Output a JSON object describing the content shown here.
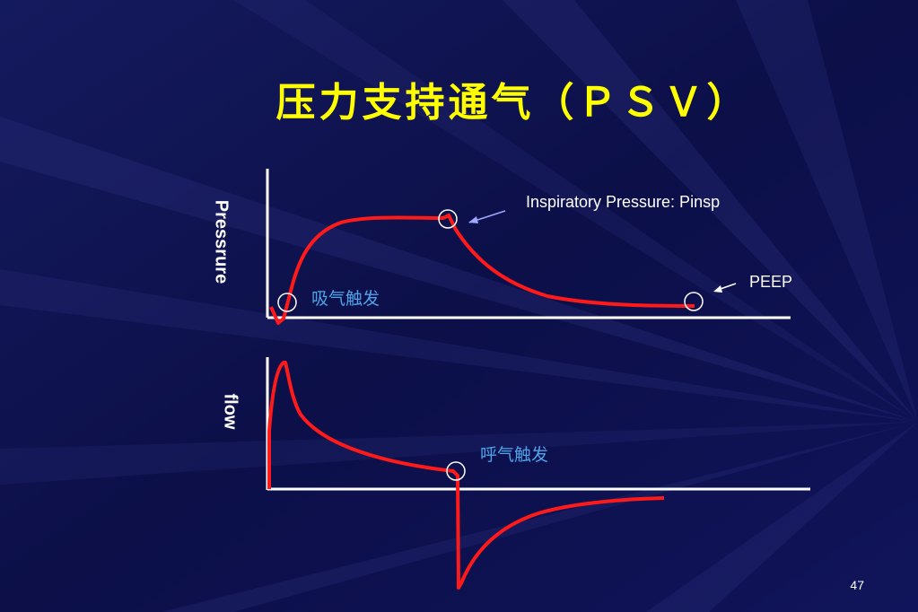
{
  "slide": {
    "title": "压力支持通气（ＰＳＶ）",
    "page_number": "47"
  },
  "pressure_plot": {
    "axis_label": "Pressrure",
    "annotation_insp": "Inspiratory Pressure: Pinsp",
    "annotation_peep": "PEEP",
    "annotation_trigger": "吸气触发"
  },
  "flow_plot": {
    "axis_label": "flow",
    "annotation_cycle": "呼气触发"
  },
  "colors": {
    "background": "#0d0f4a",
    "title": "#ffff00",
    "curve": "#ff1a1a",
    "axis": "#ffffff",
    "annotation_blue": "#4fa3e8"
  }
}
